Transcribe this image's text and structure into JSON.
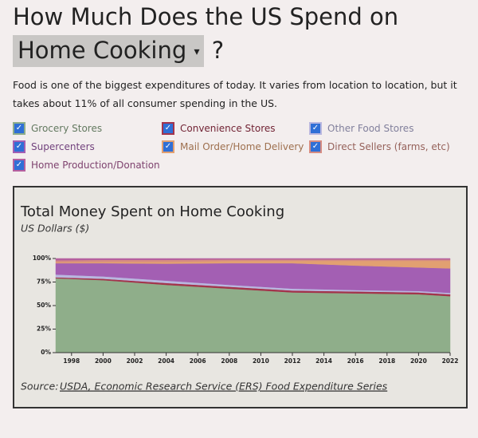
{
  "header": {
    "title": "How Much Does the US Spend on",
    "dropdown": "Home Cooking",
    "suffix": "?"
  },
  "intro": "Food is one of the biggest expenditures of today. It varies from location to location, but it takes about 11% of all consumer spending in the US.",
  "chart_data": {
    "type": "stacked-area",
    "title": "Total Money Spent on Home Cooking",
    "subtitle": "US Dollars ($)",
    "source": {
      "label": "Source:",
      "link": "USDA, Economic Research Service (ERS) Food Expenditure Series"
    },
    "x": [
      1997,
      2000,
      2004,
      2008,
      2012,
      2016,
      2020,
      2022
    ],
    "xlim": [
      1997,
      2022
    ],
    "xticks": [
      1998,
      2000,
      2002,
      2004,
      2006,
      2008,
      2010,
      2012,
      2014,
      2016,
      2018,
      2020,
      2022
    ],
    "ylim": [
      0,
      100
    ],
    "yticks": [
      {
        "value": 0,
        "label": "0%"
      },
      {
        "value": 25,
        "label": "25%"
      },
      {
        "value": 50,
        "label": "50%"
      },
      {
        "value": 75,
        "label": "75%"
      },
      {
        "value": 100,
        "label": "100%"
      }
    ],
    "series": [
      {
        "name": "Grocery Stores",
        "color": "#8fae8a",
        "values": [
          79,
          77,
          72,
          68,
          64,
          63,
          62,
          60
        ]
      },
      {
        "name": "Convenience Stores",
        "color": "#a3344c",
        "values": [
          1,
          1.5,
          2,
          2,
          2,
          2,
          2,
          2
        ]
      },
      {
        "name": "Other Food Stores",
        "color": "#b9b7df",
        "values": [
          3,
          2.5,
          2.5,
          2,
          2,
          1.5,
          1.5,
          1.5
        ]
      },
      {
        "name": "Supercenters",
        "color": "#a35fb3",
        "values": [
          12,
          14,
          18,
          23,
          27,
          26,
          25,
          26
        ]
      },
      {
        "name": "Mail Order/Home Delivery",
        "color": "#e2a071",
        "values": [
          1,
          1.5,
          2,
          2.5,
          2.5,
          5,
          7,
          8
        ]
      },
      {
        "name": "Direct Sellers (farms, etc)",
        "color": "#d68c82",
        "values": [
          2,
          2,
          2,
          1.5,
          1.5,
          1.5,
          1.5,
          1.5
        ]
      },
      {
        "name": "Home Production/Donation",
        "color": "#b5609f",
        "values": [
          2,
          1.5,
          1.5,
          1,
          1,
          1,
          1,
          1
        ]
      }
    ]
  }
}
